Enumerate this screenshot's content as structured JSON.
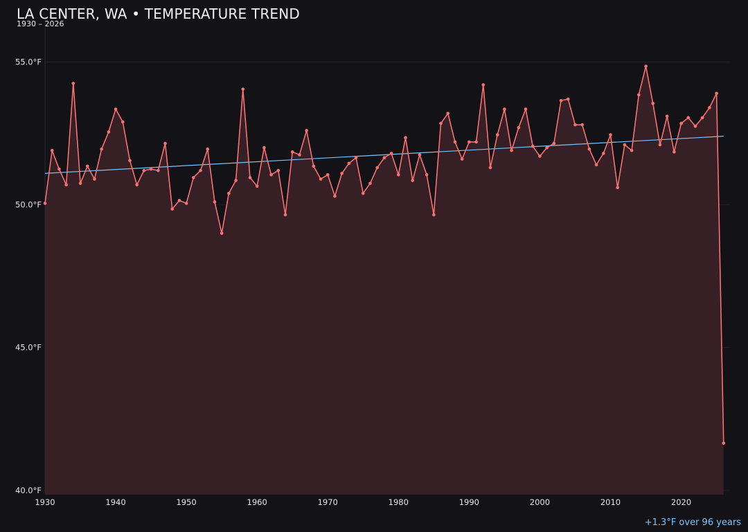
{
  "title": "LA CENTER, WA • TEMPERATURE TREND",
  "subtitle": "1930 – 2026",
  "footer_note": "+1.3°F over 96 years",
  "colors": {
    "background": "#131217",
    "line": "#f87171",
    "area": "#362026",
    "trend": "#7cc4ff",
    "grid": "#2a1f26",
    "note": "#7cc4ff"
  },
  "chart_data": {
    "type": "line",
    "title": "LA CENTER, WA • TEMPERATURE TREND",
    "subtitle": "1930 – 2026",
    "xlabel": "",
    "ylabel": "",
    "xlim": [
      1930,
      2027
    ],
    "ylim": [
      39.85,
      56.2
    ],
    "yticks": [
      40.0,
      45.0,
      50.0,
      55.0
    ],
    "ytick_labels": [
      "40.0°F",
      "45.0°F",
      "50.0°F",
      "55.0°F"
    ],
    "xticks": [
      1930,
      1940,
      1950,
      1960,
      1970,
      1980,
      1990,
      2000,
      2010,
      2020
    ],
    "xtick_labels": [
      "1930",
      "1940",
      "1950",
      "1960",
      "1970",
      "1980",
      "1990",
      "2000",
      "2010",
      "2020"
    ],
    "grid": true,
    "x": [
      1930,
      1931,
      1932,
      1933,
      1934,
      1935,
      1936,
      1937,
      1938,
      1939,
      1940,
      1941,
      1942,
      1943,
      1944,
      1945,
      1946,
      1947,
      1948,
      1949,
      1950,
      1951,
      1952,
      1953,
      1954,
      1955,
      1956,
      1957,
      1958,
      1959,
      1960,
      1961,
      1962,
      1963,
      1964,
      1965,
      1966,
      1967,
      1968,
      1969,
      1970,
      1971,
      1972,
      1973,
      1974,
      1975,
      1976,
      1977,
      1978,
      1979,
      1980,
      1981,
      1982,
      1983,
      1984,
      1985,
      1986,
      1987,
      1988,
      1989,
      1990,
      1991,
      1992,
      1993,
      1994,
      1995,
      1996,
      1997,
      1998,
      1999,
      2000,
      2001,
      2002,
      2003,
      2004,
      2005,
      2006,
      2007,
      2008,
      2009,
      2010,
      2011,
      2012,
      2013,
      2014,
      2015,
      2016,
      2017,
      2018,
      2019,
      2020,
      2021,
      2022,
      2023,
      2024,
      2025,
      2026
    ],
    "series": [
      {
        "values": [
          50.05,
          51.9,
          51.25,
          50.7,
          54.25,
          50.75,
          51.35,
          50.9,
          51.95,
          52.55,
          53.35,
          52.9,
          51.55,
          50.7,
          51.2,
          51.25,
          51.2,
          52.15,
          49.85,
          50.15,
          50.05,
          50.95,
          51.2,
          51.95,
          50.1,
          49.0,
          50.4,
          50.85,
          54.05,
          50.95,
          50.65,
          52.0,
          51.05,
          51.2,
          49.65,
          51.85,
          51.75,
          52.6,
          51.35,
          50.9,
          51.05,
          50.3,
          51.1,
          51.45,
          51.65,
          50.4,
          50.75,
          51.3,
          51.65,
          51.8,
          51.05,
          52.35,
          50.85,
          51.75,
          51.05,
          49.65,
          52.85,
          53.2,
          52.2,
          51.6,
          52.2,
          52.2,
          54.2,
          51.3,
          52.45,
          53.35,
          51.9,
          52.7,
          53.35,
          52.05,
          51.7,
          52.0,
          52.15,
          53.65,
          53.7,
          52.8,
          52.8,
          51.95,
          51.4,
          51.8,
          52.45,
          50.6,
          52.1,
          51.9,
          53.85,
          54.85,
          53.55,
          52.1,
          53.1,
          51.85,
          52.85,
          53.05,
          52.75,
          53.05,
          53.4,
          53.9,
          41.65
        ]
      },
      {
        "type": "trend",
        "x": [
          1930,
          2026
        ],
        "values": [
          51.1,
          52.4
        ]
      }
    ]
  }
}
